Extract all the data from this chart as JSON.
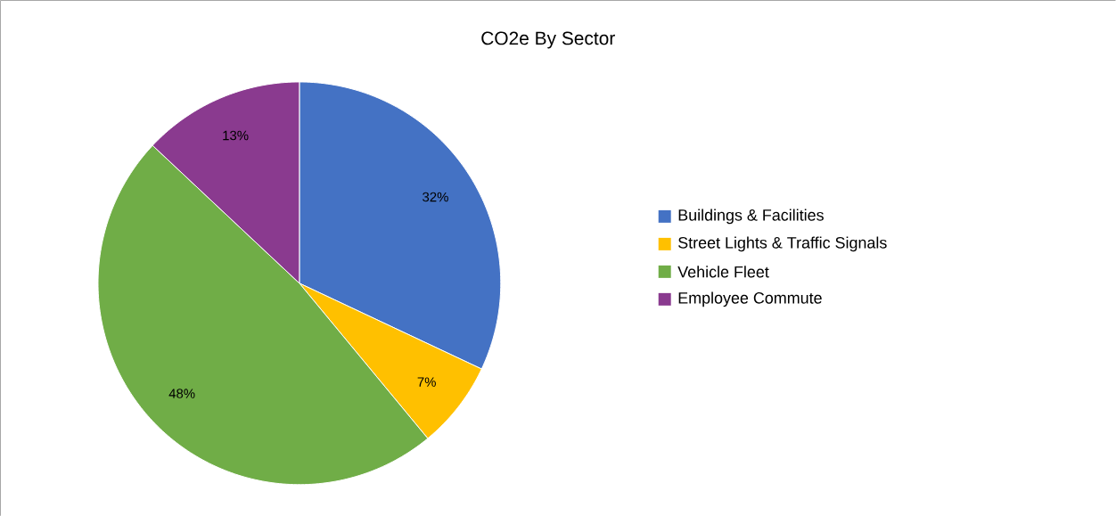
{
  "chart_data": {
    "type": "pie",
    "title": "CO2e By Sector",
    "categories": [
      "Buildings & Facilities",
      "Street Lights & Traffic Signals",
      "Vehicle Fleet",
      "Employee Commute"
    ],
    "values": [
      32,
      7,
      48,
      13
    ],
    "colors": [
      "#4472c4",
      "#ffc000",
      "#70ad47",
      "#8a3a8f"
    ],
    "value_labels": [
      "32%",
      "7%",
      "48%",
      "13%"
    ],
    "legend": "right"
  }
}
